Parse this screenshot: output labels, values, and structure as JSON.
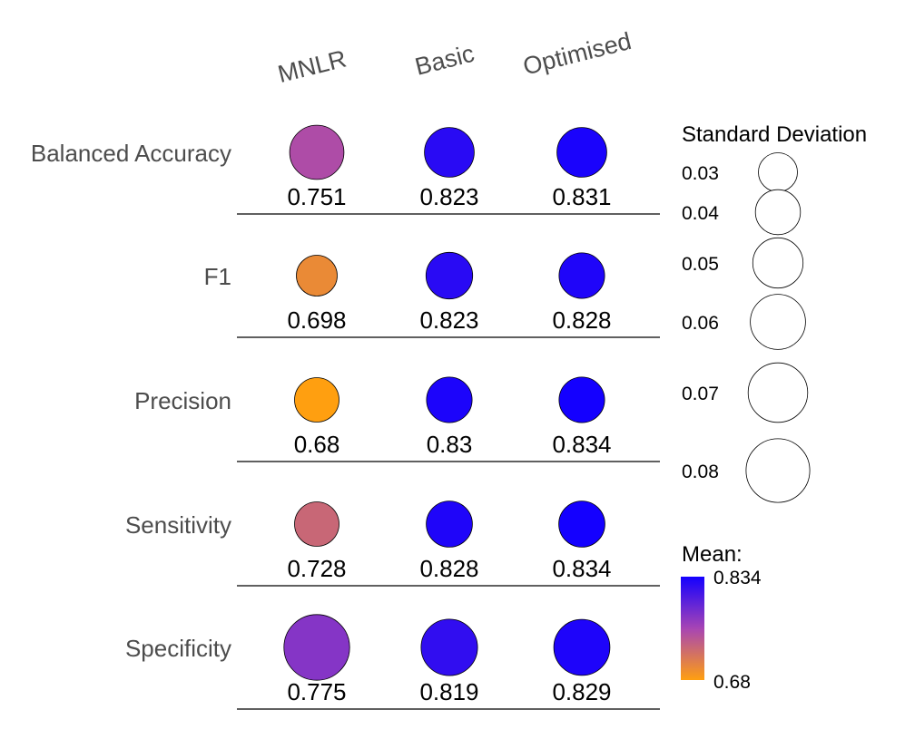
{
  "chart_data": {
    "type": "scatter",
    "subtype": "bubble-matrix",
    "columns": [
      "MNLR",
      "Basic",
      "Optimised"
    ],
    "rows": [
      "Balanced Accuracy",
      "F1",
      "Precision",
      "Sensitivity",
      "Specificity"
    ],
    "cells": [
      [
        {
          "mean": 0.751,
          "label": "0.751",
          "sd": 0.058
        },
        {
          "mean": 0.823,
          "label": "0.823",
          "sd": 0.049
        },
        {
          "mean": 0.831,
          "label": "0.831",
          "sd": 0.049
        }
      ],
      [
        {
          "mean": 0.698,
          "label": "0.698",
          "sd": 0.033
        },
        {
          "mean": 0.823,
          "label": "0.823",
          "sd": 0.043
        },
        {
          "mean": 0.828,
          "label": "0.828",
          "sd": 0.041
        }
      ],
      [
        {
          "mean": 0.68,
          "label": "0.68",
          "sd": 0.039
        },
        {
          "mean": 0.83,
          "label": "0.83",
          "sd": 0.041
        },
        {
          "mean": 0.834,
          "label": "0.834",
          "sd": 0.041
        }
      ],
      [
        {
          "mean": 0.728,
          "label": "0.728",
          "sd": 0.039
        },
        {
          "mean": 0.828,
          "label": "0.828",
          "sd": 0.042
        },
        {
          "mean": 0.834,
          "label": "0.834",
          "sd": 0.042
        }
      ],
      [
        {
          "mean": 0.775,
          "label": "0.775",
          "sd": 0.085
        },
        {
          "mean": 0.819,
          "label": "0.819",
          "sd": 0.063
        },
        {
          "mean": 0.829,
          "label": "0.829",
          "sd": 0.062
        }
      ]
    ],
    "size_legend": {
      "title": "Standard Deviation",
      "entries": [
        {
          "value": 0.03,
          "label": "0.03"
        },
        {
          "value": 0.04,
          "label": "0.04"
        },
        {
          "value": 0.05,
          "label": "0.05"
        },
        {
          "value": 0.06,
          "label": "0.06"
        },
        {
          "value": 0.07,
          "label": "0.07"
        },
        {
          "value": 0.08,
          "label": "0.08"
        }
      ]
    },
    "color_legend": {
      "title": "Mean:",
      "max_label": "0.834",
      "min_label": "0.68",
      "min": 0.68,
      "max": 0.834,
      "low_color": "#FF9F10",
      "mid_color": "#A745B4",
      "high_color": "#1400FF"
    },
    "legend_position": "right"
  }
}
